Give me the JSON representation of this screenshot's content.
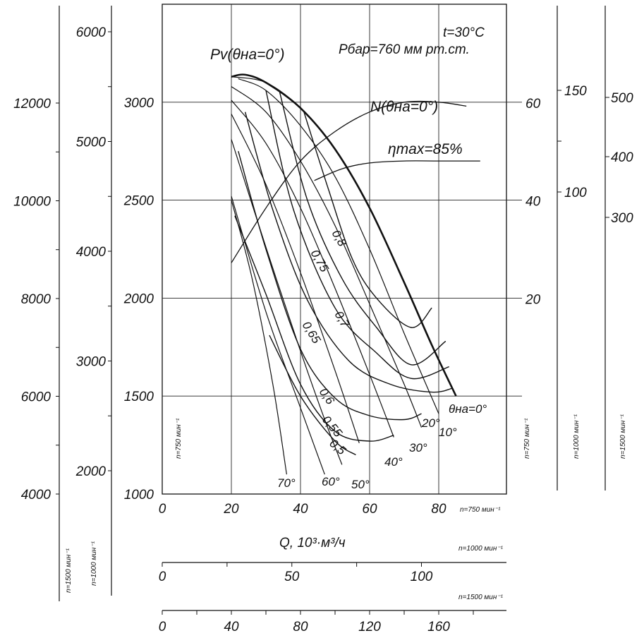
{
  "chart_data": {
    "type": "line",
    "title": "",
    "xlabel": "Q, 10³·м³/ч",
    "ylabel": "",
    "conditions": [
      "t=30°C",
      "Pбар=760 мм рт.ст."
    ],
    "x_axes": [
      {
        "rpm_label": "n=750 мин⁻¹",
        "ticks": [
          "0",
          "20",
          "40",
          "60",
          "80"
        ],
        "range": [
          0,
          100
        ]
      },
      {
        "rpm_label": "n=1000 мин⁻¹",
        "ticks": [
          "0",
          "50",
          "100"
        ],
        "range": [
          0,
          133.3
        ]
      },
      {
        "rpm_label": "n=1500 мин⁻¹",
        "ticks": [
          "0",
          "40",
          "80",
          "120",
          "160"
        ],
        "range": [
          0,
          200
        ]
      }
    ],
    "pressure_axes": [
      {
        "rpm_label": "n=750 мин⁻¹",
        "ticks": [
          "1000",
          "1500",
          "2000",
          "2500",
          "3000"
        ],
        "range": [
          1000,
          3200
        ]
      },
      {
        "rpm_label": "n=1000 мин⁻¹",
        "ticks": [
          "2000",
          "3000",
          "4000",
          "5000",
          "6000"
        ],
        "range": [
          1778,
          5689
        ]
      },
      {
        "rpm_label": "n=1500 мин⁻¹",
        "ticks": [
          "4000",
          "6000",
          "8000",
          "10000",
          "12000"
        ],
        "range": [
          4000,
          12800
        ]
      }
    ],
    "power_axes": [
      {
        "rpm_label": "n=750 мин⁻¹",
        "ticks": [
          "20",
          "40",
          "60"
        ],
        "values": [
          20,
          40,
          60
        ]
      },
      {
        "rpm_label": "n=1000 мин⁻¹",
        "ticks": [
          "100",
          "150"
        ],
        "values": [
          100,
          150
        ]
      },
      {
        "rpm_label": "n=1500 мин⁻¹",
        "ticks": [
          "300",
          "400",
          "500"
        ],
        "values": [
          300,
          400,
          500
        ]
      }
    ],
    "pv_envelope": {
      "label": "Pv(θна=0°)",
      "x": [
        20,
        24,
        30,
        40,
        50,
        60,
        70,
        78,
        85
      ],
      "y": [
        3130,
        3140,
        3100,
        2970,
        2760,
        2460,
        2080,
        1760,
        1500
      ]
    },
    "guide_vane_curves": [
      {
        "label": "θна=0°",
        "x": [
          20,
          30,
          40,
          50,
          60,
          70,
          78,
          85
        ],
        "y": [
          3130,
          3100,
          2970,
          2760,
          2460,
          2080,
          1760,
          1500
        ]
      },
      {
        "label": "10°",
        "x": [
          22,
          30,
          40,
          50,
          60,
          70,
          80
        ],
        "y": [
          3120,
          3060,
          2880,
          2620,
          2250,
          1820,
          1410
        ]
      },
      {
        "label": "20°",
        "x": [
          20,
          30,
          40,
          50,
          60,
          70,
          75
        ],
        "y": [
          3080,
          2950,
          2700,
          2370,
          1970,
          1560,
          1340
        ]
      },
      {
        "label": "30°",
        "x": [
          20,
          30,
          40,
          50,
          60,
          67
        ],
        "y": [
          3010,
          2790,
          2460,
          2050,
          1610,
          1290
        ]
      },
      {
        "label": "40°",
        "x": [
          20,
          30,
          40,
          50,
          57
        ],
        "y": [
          2940,
          2580,
          2130,
          1630,
          1260
        ]
      },
      {
        "label": "50°",
        "x": [
          20,
          30,
          40,
          47,
          52
        ],
        "y": [
          2810,
          2260,
          1730,
          1380,
          1150
        ]
      },
      {
        "label": "60°",
        "x": [
          20,
          30,
          40,
          47
        ],
        "y": [
          2520,
          1930,
          1440,
          1100
        ]
      },
      {
        "label": "70°",
        "x": [
          20,
          26,
          32,
          36
        ],
        "y": [
          2500,
          2100,
          1560,
          1100
        ]
      }
    ],
    "efficiency_curves": [
      {
        "label": "0,8",
        "x": [
          41,
          48,
          55,
          62,
          72,
          78
        ],
        "y": [
          2950,
          2560,
          2200,
          2000,
          1850,
          1950
        ]
      },
      {
        "label": "0,75",
        "x": [
          34,
          42,
          52,
          62,
          72,
          82
        ],
        "y": [
          3050,
          2500,
          2100,
          1850,
          1660,
          1780
        ]
      },
      {
        "label": "0,7",
        "x": [
          30,
          38,
          50,
          62,
          72,
          83
        ],
        "y": [
          3060,
          2450,
          1950,
          1720,
          1590,
          1650
        ]
      },
      {
        "label": "0,65",
        "x": [
          24,
          32,
          42,
          54,
          66,
          78,
          84
        ],
        "y": [
          2950,
          2450,
          1990,
          1680,
          1560,
          1520,
          1540
        ]
      },
      {
        "label": "0,6",
        "x": [
          22,
          30,
          40,
          50,
          60,
          70,
          75
        ],
        "y": [
          2750,
          2250,
          1740,
          1490,
          1400,
          1380,
          1410
        ]
      },
      {
        "label": "0,55",
        "x": [
          21,
          30,
          40,
          50,
          60,
          67
        ],
        "y": [
          2420,
          2020,
          1560,
          1320,
          1270,
          1300
        ]
      },
      {
        "label": "0,5",
        "x": [
          31,
          40,
          50,
          56
        ],
        "y": [
          1810,
          1500,
          1270,
          1200
        ]
      }
    ],
    "power_curve": {
      "label": "N(θна=0°)",
      "x": [
        20,
        30,
        40,
        50,
        60,
        70,
        80,
        88
      ],
      "y": [
        2180,
        2460,
        2700,
        2850,
        2950,
        3000,
        3000,
        2980
      ]
    },
    "efficiency_max": {
      "label": "ηmax=85%",
      "x": [
        44,
        52,
        60,
        70,
        80,
        92
      ],
      "y": [
        2600,
        2660,
        2690,
        2700,
        2700,
        2700
      ]
    }
  }
}
